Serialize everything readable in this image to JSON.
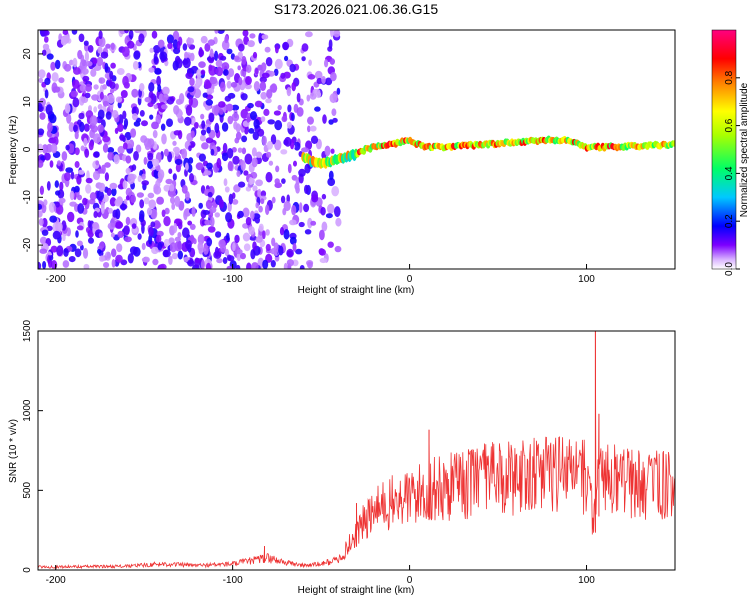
{
  "title": "S173.2026.021.06.36.G15",
  "chart_data": [
    {
      "type": "heatmap",
      "name": "spectrogram",
      "xlabel": "Height of straight line (km)",
      "ylabel": "Frequency (Hz)",
      "xlim": [
        -210,
        150
      ],
      "ylim": [
        -25,
        25
      ],
      "xticks": [
        -200,
        -100,
        0,
        100
      ],
      "yticks": [
        -20,
        -10,
        0,
        10,
        20
      ],
      "colorbar": {
        "label": "Normalized spectral amplitude",
        "range": [
          0,
          1
        ],
        "ticks": [
          0.0,
          0.2,
          0.4,
          0.6,
          0.8
        ],
        "tick_labels": [
          "0.0",
          "0.2",
          "0.4",
          "0.6",
          "0.8"
        ],
        "colors": [
          "#ffffff",
          "#7d00ff",
          "#0000ff",
          "#00c8ff",
          "#00ff66",
          "#aaff00",
          "#ffff00",
          "#ff8000",
          "#ff0000",
          "#ff0080"
        ]
      },
      "ridge": {
        "description_points_x": [
          -60,
          -55,
          -50,
          -45,
          -40,
          -35,
          -30,
          -25,
          -20,
          -15,
          -10,
          -5,
          0,
          5,
          10,
          20,
          40,
          60,
          80,
          90,
          100,
          110,
          150
        ],
        "description_points_y": [
          -1.5,
          -2.5,
          -3,
          -2.5,
          -2,
          -1.5,
          -1,
          0,
          0.5,
          1,
          1,
          1.5,
          2,
          1,
          0.5,
          0.5,
          1,
          1.5,
          2,
          2,
          0.5,
          0.5,
          1
        ]
      },
      "scatter_region": {
        "x_range": [
          -210,
          -40
        ],
        "y_range": [
          -25,
          25
        ],
        "dominant_amplitude": [
          0.05,
          0.2
        ]
      }
    },
    {
      "type": "line",
      "name": "snr",
      "xlabel": "Height of straight line (km)",
      "ylabel": "SNR (10 * v/v)",
      "xlim": [
        -210,
        150
      ],
      "ylim": [
        0,
        1500
      ],
      "xticks": [
        -200,
        -100,
        0,
        100
      ],
      "yticks": [
        0,
        500,
        1000,
        1500
      ],
      "color": "#ee3333",
      "trend_x": [
        -210,
        -160,
        -140,
        -120,
        -100,
        -90,
        -80,
        -70,
        -60,
        -50,
        -40,
        -35,
        -30,
        -25,
        -20,
        -15,
        -10,
        -5,
        0,
        10,
        20,
        30,
        40,
        50,
        60,
        70,
        80,
        90,
        100,
        104,
        106,
        108,
        110,
        120,
        130,
        140,
        150
      ],
      "trend_y": [
        20,
        25,
        40,
        30,
        40,
        60,
        80,
        50,
        30,
        40,
        70,
        150,
        250,
        320,
        380,
        420,
        440,
        460,
        480,
        520,
        540,
        560,
        590,
        600,
        610,
        620,
        630,
        640,
        620,
        300,
        500,
        620,
        600,
        580,
        570,
        560,
        550
      ],
      "spikes": [
        {
          "x": -82,
          "y": 150
        },
        {
          "x": -30,
          "y": 420
        },
        {
          "x": 11,
          "y": 880
        },
        {
          "x": 105,
          "y": 1500
        },
        {
          "x": 107,
          "y": 980
        }
      ]
    }
  ]
}
